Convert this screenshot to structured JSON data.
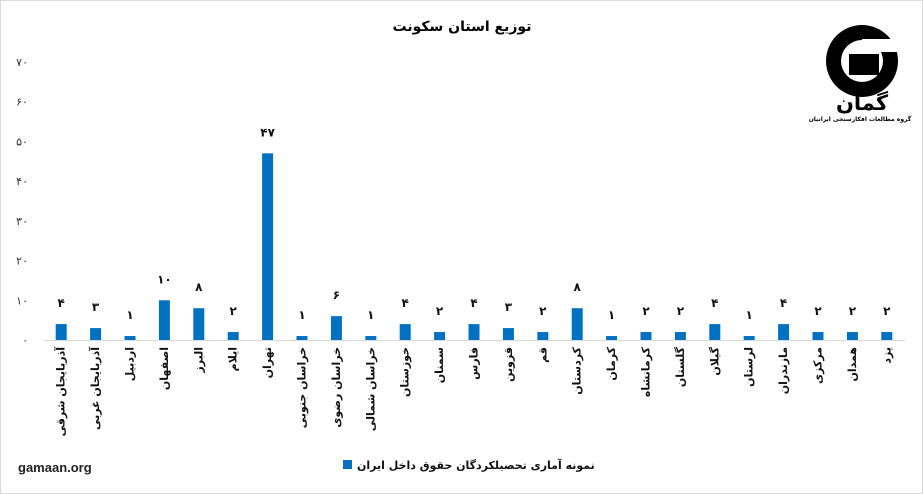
{
  "chart_data": {
    "type": "bar",
    "title": "توزیع استان سکونت",
    "xlabel": "",
    "ylabel": "",
    "ylim": [
      0,
      70
    ],
    "yticks": [
      0,
      10,
      20,
      30,
      40,
      50,
      60,
      70
    ],
    "ytick_labels": [
      "۰",
      "۱۰",
      "۲۰",
      "۳۰",
      "۴۰",
      "۵۰",
      "۶۰",
      "۷۰"
    ],
    "categories": [
      "آذربایجان شرقی",
      "آذربایجان غربی",
      "اردبیل",
      "اصفهان",
      "البرز",
      "ایلام",
      "تهران",
      "خراسان جنوبی",
      "خراسان رضوی",
      "خراسان شمالی",
      "خوزستان",
      "سمنان",
      "فارس",
      "قزوین",
      "قم",
      "کردستان",
      "کرمان",
      "کرمانشاه",
      "گلستان",
      "گیلان",
      "لرستان",
      "مازندران",
      "مرکزی",
      "همدان",
      "یزد"
    ],
    "series": [
      {
        "name": "نمونه آماری تحصیلکردگان حقوق داخل ایران",
        "values": [
          4,
          3,
          1,
          10,
          8,
          2,
          47,
          1,
          6,
          1,
          4,
          2,
          4,
          3,
          2,
          8,
          1,
          2,
          2,
          4,
          1,
          4,
          2,
          2,
          2
        ],
        "data_labels": [
          "۴",
          "۳",
          "۱",
          "۱۰",
          "۸",
          "۲",
          "۴۷",
          "۱",
          "۶",
          "۱",
          "۴",
          "۲",
          "۴",
          "۳",
          "۲",
          "۸",
          "۱",
          "۲",
          "۲",
          "۴",
          "۱",
          "۴",
          "۲",
          "۲",
          "۲"
        ],
        "color": "#0070C0"
      }
    ],
    "grid": false,
    "legend": "bottom"
  },
  "logo": {
    "icon": "gamaan-logo-icon",
    "name": "گمان",
    "tagline": "گروه مطالعات افکارسنجی ایرانیان"
  },
  "footer": {
    "website": "gamaan.org"
  },
  "colors": {
    "axis": "#D9D9D9",
    "border": "#D9D9D9",
    "logo": "#000000"
  }
}
